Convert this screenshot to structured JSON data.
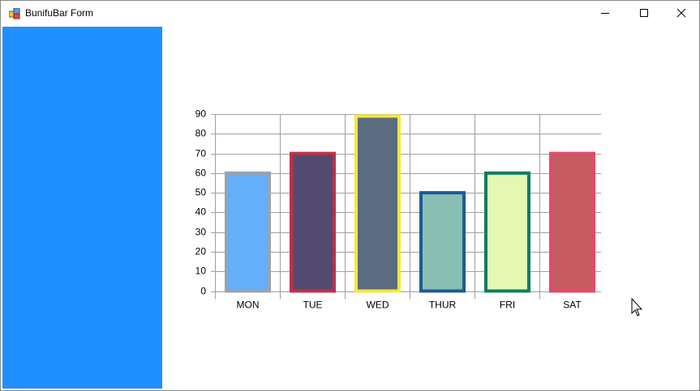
{
  "window": {
    "title": "BunifuBar Form"
  },
  "chart_data": {
    "type": "bar",
    "categories": [
      "MON",
      "TUE",
      "WED",
      "THUR",
      "FRI",
      "SAT"
    ],
    "values": [
      60,
      70,
      89,
      50,
      60,
      70
    ],
    "colors": [
      "#64aefa",
      "#554a6f",
      "#5b6b80",
      "#89bfb2",
      "#e4f8b4",
      "#c65c60"
    ],
    "border_colors": [
      "#9aa3ad",
      "#c0304a",
      "#f5e83a",
      "#1c5a96",
      "#0e7c66",
      "#e44a6a"
    ],
    "ylim": [
      0,
      90
    ],
    "yticks": [
      0,
      10,
      20,
      30,
      40,
      50,
      60,
      70,
      80,
      90
    ],
    "grid": true
  }
}
